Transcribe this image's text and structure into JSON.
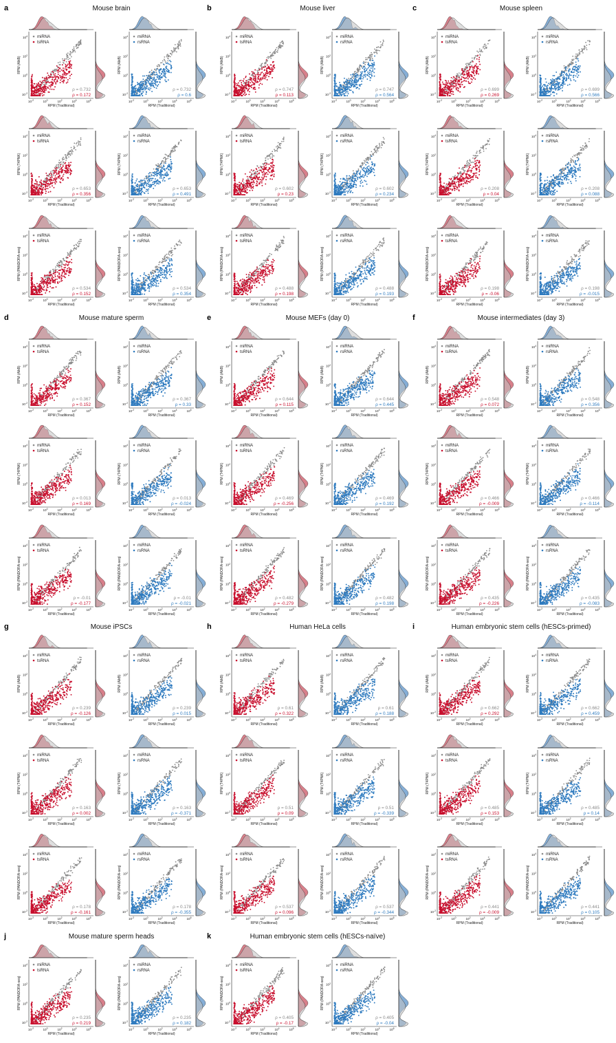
{
  "colors": {
    "tsRNA": "#c8102e",
    "rsRNA": "#2f7bbf",
    "miRNA": "#8a8a8a",
    "tsFill": "#d4727e",
    "rsFill": "#78a6d2",
    "miFill": "#c2c2c2"
  },
  "common": {
    "xlabel": "RPM (Traditional)",
    "xticks": [
      "10",
      "10",
      "10",
      "10",
      "10"
    ],
    "xtick_exp": [
      "-2",
      "0",
      "2",
      "4",
      "6"
    ],
    "yticks": [
      "10",
      "10",
      "10",
      "10"
    ],
    "ytick_exp": [
      "-2",
      "0",
      "2",
      "4"
    ],
    "rho_prefix": "ρ = ",
    "legend_mi": "miRNA",
    "legend_ts": "tsRNA",
    "legend_rs": "rsRNA"
  },
  "chart_data": [
    {
      "letter": "a",
      "title": "Mouse brain",
      "rows": [
        {
          "ylabel": "RPM (AlkB)",
          "ts": {
            "rho_mi": "0.732",
            "rho_x": "0.172"
          },
          "rs": {
            "rho_mi": "0.732",
            "rho_x": "0.6"
          }
        },
        {
          "ylabel": "RPM (T4PNK)",
          "ts": {
            "rho_mi": "0.653",
            "rho_x": "0.356"
          },
          "rs": {
            "rho_mi": "0.653",
            "rho_x": "0.491"
          }
        },
        {
          "ylabel": "RPM (PANDORA-seq)",
          "ts": {
            "rho_mi": "0.534",
            "rho_x": "0.152"
          },
          "rs": {
            "rho_mi": "0.534",
            "rho_x": "0.354"
          }
        }
      ]
    },
    {
      "letter": "b",
      "title": "Mouse liver",
      "rows": [
        {
          "ylabel": "RPM (AlkB)",
          "ts": {
            "rho_mi": "0.747",
            "rho_x": "0.113"
          },
          "rs": {
            "rho_mi": "0.747",
            "rho_x": "0.564"
          }
        },
        {
          "ylabel": "RPM (T4PNK)",
          "ts": {
            "rho_mi": "0.602",
            "rho_x": "0.23"
          },
          "rs": {
            "rho_mi": "0.602",
            "rho_x": "0.234"
          }
        },
        {
          "ylabel": "RPM (PANDORA-seq)",
          "ts": {
            "rho_mi": "0.488",
            "rho_x": "0.198"
          },
          "rs": {
            "rho_mi": "0.488",
            "rho_x": "0.193"
          }
        }
      ]
    },
    {
      "letter": "c",
      "title": "Mouse spleen",
      "rows": [
        {
          "ylabel": "RPM (AlkB)",
          "ts": {
            "rho_mi": "0.699",
            "rho_x": "0.269"
          },
          "rs": {
            "rho_mi": "0.699",
            "rho_x": "0.566"
          }
        },
        {
          "ylabel": "RPM (T4PNK)",
          "ts": {
            "rho_mi": "0.208",
            "rho_x": "0.04"
          },
          "rs": {
            "rho_mi": "0.208",
            "rho_x": "0.088"
          }
        },
        {
          "ylabel": "RPM (PANDORA-seq)",
          "ts": {
            "rho_mi": "0.198",
            "rho_x": "-0.06"
          },
          "rs": {
            "rho_mi": "0.198",
            "rho_x": "-0.015"
          }
        }
      ]
    },
    {
      "letter": "d",
      "title": "Mouse mature sperm",
      "rows": [
        {
          "ylabel": "RPM (AlkB)",
          "ts": {
            "rho_mi": "0.367",
            "rho_x": "0.152"
          },
          "rs": {
            "rho_mi": "0.367",
            "rho_x": "0.33"
          }
        },
        {
          "ylabel": "RPM (T4PNK)",
          "ts": {
            "rho_mi": "0.013",
            "rho_x": "0.169"
          },
          "rs": {
            "rho_mi": "0.013",
            "rho_x": "-0.024"
          }
        },
        {
          "ylabel": "RPM (PANDORA-seq)",
          "ts": {
            "rho_mi": "-0.01",
            "rho_x": "-0.177"
          },
          "rs": {
            "rho_mi": "-0.01",
            "rho_x": "-0.021"
          }
        }
      ]
    },
    {
      "letter": "e",
      "title": "Mouse MEFs (day 0)",
      "rows": [
        {
          "ylabel": "RPM (AlkB)",
          "ts": {
            "rho_mi": "0.644",
            "rho_x": "0.115"
          },
          "rs": {
            "rho_mi": "0.644",
            "rho_x": "0.445"
          }
        },
        {
          "ylabel": "RPM (T4PNK)",
          "ts": {
            "rho_mi": "0.469",
            "rho_x": "-0.256"
          },
          "rs": {
            "rho_mi": "0.469",
            "rho_x": "0.192"
          }
        },
        {
          "ylabel": "RPM (PANDORA-seq)",
          "ts": {
            "rho_mi": "0.482",
            "rho_x": "-0.279"
          },
          "rs": {
            "rho_mi": "0.482",
            "rho_x": "0.198"
          }
        }
      ]
    },
    {
      "letter": "f",
      "title": "Mouse intermediates (day 3)",
      "rows": [
        {
          "ylabel": "RPM (AlkB)",
          "ts": {
            "rho_mi": "0.548",
            "rho_x": "0.072"
          },
          "rs": {
            "rho_mi": "0.548",
            "rho_x": "0.356"
          }
        },
        {
          "ylabel": "RPM (T4PNK)",
          "ts": {
            "rho_mi": "0.466",
            "rho_x": "-0.009"
          },
          "rs": {
            "rho_mi": "0.466",
            "rho_x": "-0.114"
          }
        },
        {
          "ylabel": "RPM (PANDORA-seq)",
          "ts": {
            "rho_mi": "0.435",
            "rho_x": "-0.226"
          },
          "rs": {
            "rho_mi": "0.435",
            "rho_x": "-0.083"
          }
        }
      ]
    },
    {
      "letter": "g",
      "title": "Mouse iPSCs",
      "rows": [
        {
          "ylabel": "RPM (AlkB)",
          "ts": {
            "rho_mi": "0.239",
            "rho_x": "-0.126"
          },
          "rs": {
            "rho_mi": "0.239",
            "rho_x": "0.015"
          }
        },
        {
          "ylabel": "RPM (T4PNK)",
          "ts": {
            "rho_mi": "0.163",
            "rho_x": "0.002"
          },
          "rs": {
            "rho_mi": "0.163",
            "rho_x": "-0.371"
          }
        },
        {
          "ylabel": "RPM (PANDORA-seq)",
          "ts": {
            "rho_mi": "0.178",
            "rho_x": "-0.161"
          },
          "rs": {
            "rho_mi": "0.178",
            "rho_x": "-0.355"
          }
        }
      ]
    },
    {
      "letter": "h",
      "title": "Human HeLa cells",
      "rows": [
        {
          "ylabel": "RPM (AlkB)",
          "ts": {
            "rho_mi": "0.61",
            "rho_x": "0.322"
          },
          "rs": {
            "rho_mi": "0.61",
            "rho_x": "0.188"
          }
        },
        {
          "ylabel": "RPM (T4PNK)",
          "ts": {
            "rho_mi": "0.51",
            "rho_x": "0.09"
          },
          "rs": {
            "rho_mi": "0.51",
            "rho_x": "-0.339"
          }
        },
        {
          "ylabel": "RPM (PANDORA-seq)",
          "ts": {
            "rho_mi": "0.537",
            "rho_x": "0.096"
          },
          "rs": {
            "rho_mi": "0.537",
            "rho_x": "-0.344"
          }
        }
      ]
    },
    {
      "letter": "i",
      "title": "Human embryonic stem cells (hESCs-primed)",
      "rows": [
        {
          "ylabel": "RPM (AlkB)",
          "ts": {
            "rho_mi": "0.662",
            "rho_x": "0.292"
          },
          "rs": {
            "rho_mi": "0.662",
            "rho_x": "0.459"
          }
        },
        {
          "ylabel": "RPM (T4PNK)",
          "ts": {
            "rho_mi": "0.485",
            "rho_x": "0.153"
          },
          "rs": {
            "rho_mi": "0.485",
            "rho_x": "0.14"
          }
        },
        {
          "ylabel": "RPM (PANDORA-seq)",
          "ts": {
            "rho_mi": "0.441",
            "rho_x": "-0.009"
          },
          "rs": {
            "rho_mi": "0.441",
            "rho_x": "0.105"
          }
        }
      ]
    },
    {
      "letter": "j",
      "title": "Mouse mature sperm heads",
      "rows": [
        {
          "ylabel": "RPM (PANDORA-seq)",
          "ts": {
            "rho_mi": "0.235",
            "rho_x": "0.219"
          },
          "rs": {
            "rho_mi": "0.235",
            "rho_x": "0.182"
          }
        }
      ]
    },
    {
      "letter": "k",
      "title": "Human embryonic stem cells (hESCs-naïve)",
      "rows": [
        {
          "ylabel": "RPM (PANDORA-seq)",
          "ts": {
            "rho_mi": "0.405",
            "rho_x": "-0.17"
          },
          "rs": {
            "rho_mi": "0.405",
            "rho_x": "-0.04"
          }
        }
      ]
    }
  ]
}
